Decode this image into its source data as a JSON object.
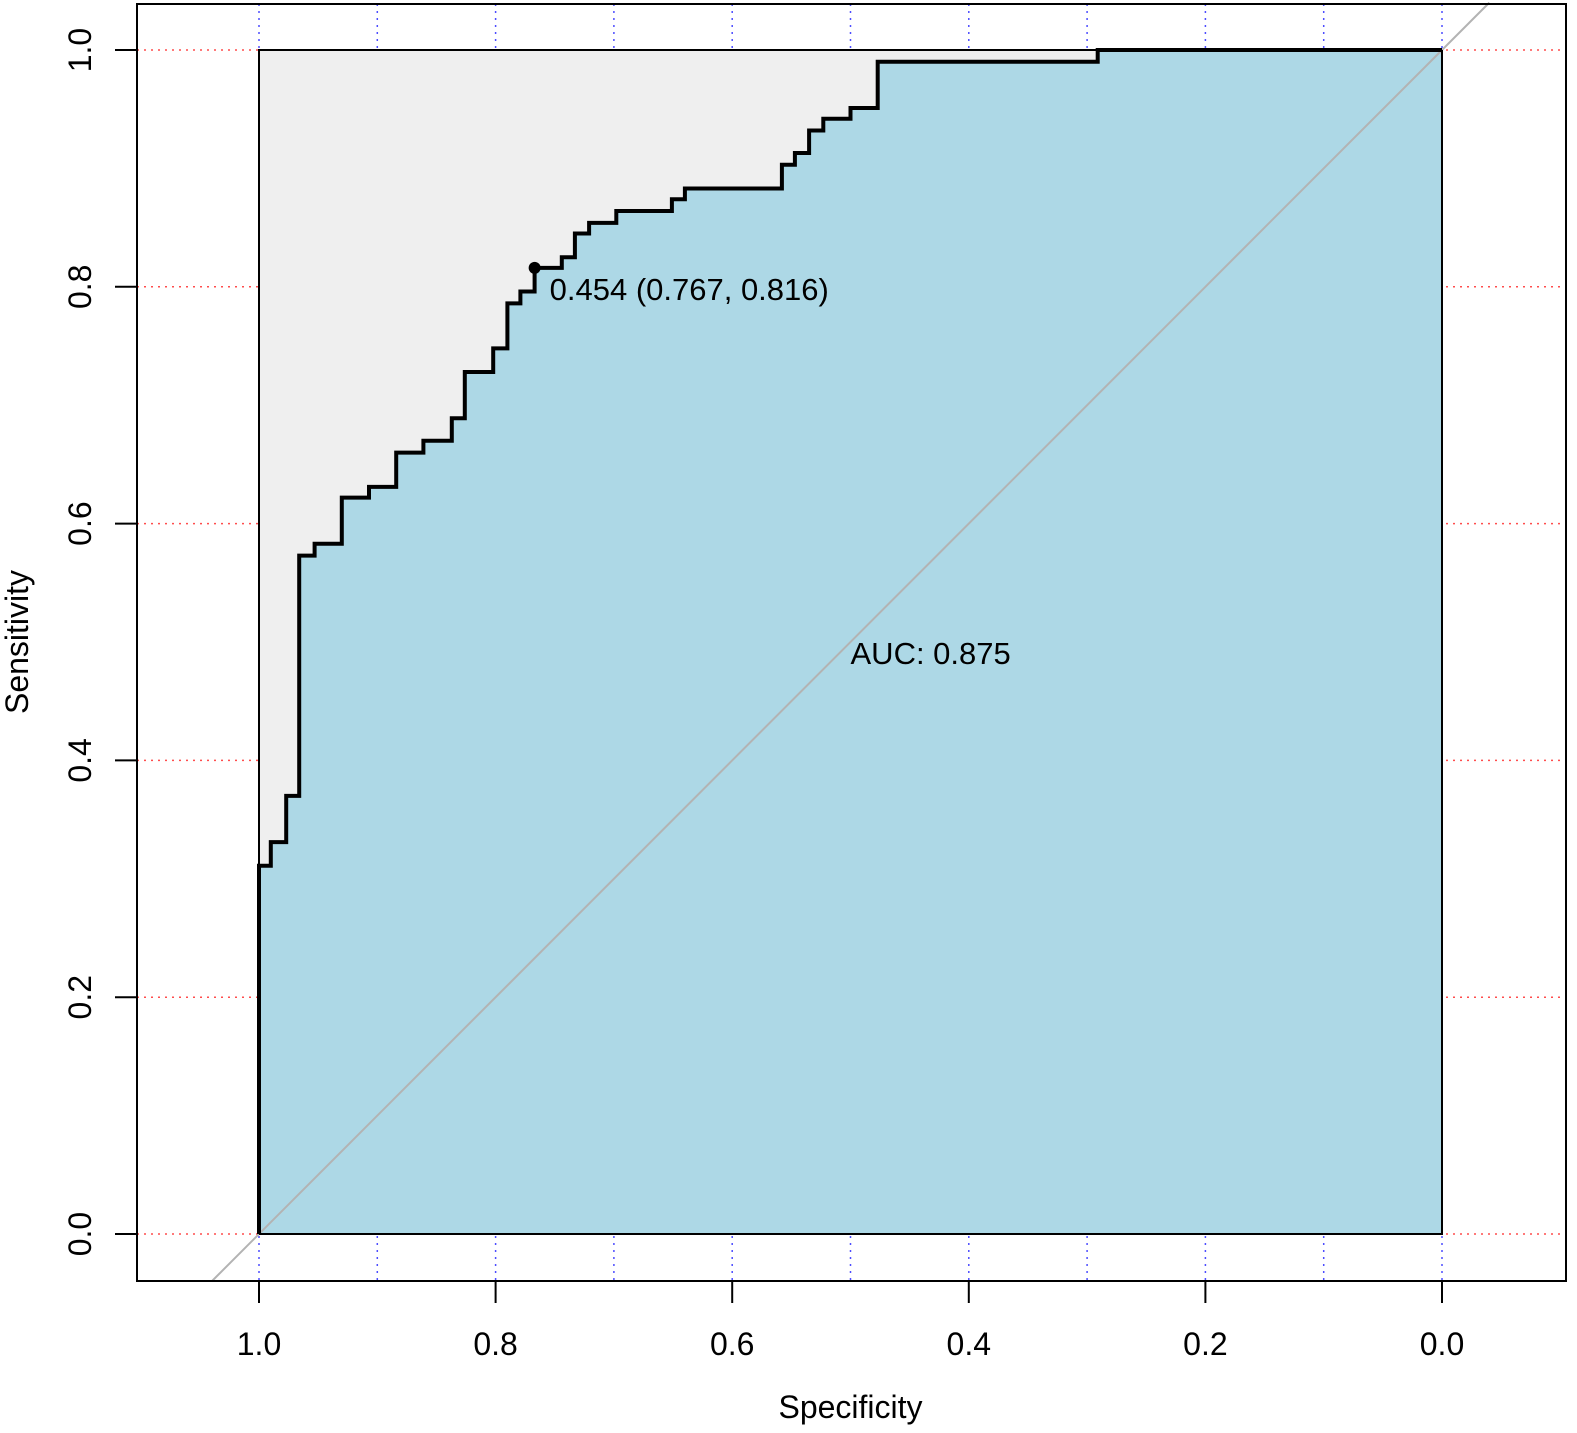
{
  "chart_data": {
    "type": "line",
    "subtype": "roc-curve",
    "title": "",
    "xlabel": "Specificity",
    "ylabel": "Sensitivity",
    "xlim": [
      1.0,
      0.0
    ],
    "ylim": [
      0.0,
      1.0
    ],
    "x_reversed": true,
    "x_ticks": [
      1.0,
      0.8,
      0.6,
      0.4,
      0.2,
      0.0
    ],
    "x_tick_labels": [
      "1.0",
      "0.8",
      "0.6",
      "0.4",
      "0.2",
      "0.0"
    ],
    "y_ticks": [
      0.0,
      0.2,
      0.4,
      0.6,
      0.8,
      1.0
    ],
    "y_tick_labels": [
      "0.0",
      "0.2",
      "0.4",
      "0.6",
      "0.8",
      "1.0"
    ],
    "grid": {
      "vertical": {
        "on": true,
        "style": "dotted",
        "color": "#4d4dff",
        "at": [
          1.0,
          0.9,
          0.8,
          0.7,
          0.6,
          0.5,
          0.4,
          0.3,
          0.2,
          0.1,
          0.0
        ]
      },
      "horizontal": {
        "on": true,
        "style": "dotted",
        "color": "#ff4d4d",
        "at": [
          0.0,
          0.2,
          0.4,
          0.6,
          0.8,
          1.0
        ]
      }
    },
    "colors": {
      "auc_fill": "#add8e6",
      "max_auc_fill": "#efefef",
      "curve": "#000000",
      "reference_line": "#b3b3b3"
    },
    "reference_line": {
      "from": [
        1.0,
        0.0
      ],
      "to": [
        0.0,
        1.0
      ]
    },
    "series": [
      {
        "specificity": [
          1.0,
          1.0,
          0.99,
          0.99,
          0.977,
          0.977,
          0.966,
          0.966,
          0.953,
          0.953,
          0.93,
          0.93,
          0.907,
          0.907,
          0.884,
          0.884,
          0.861,
          0.861,
          0.837,
          0.837,
          0.826,
          0.826,
          0.802,
          0.802,
          0.79,
          0.79,
          0.779,
          0.779,
          0.767,
          0.767,
          0.744,
          0.744,
          0.733,
          0.733,
          0.721,
          0.721,
          0.698,
          0.698,
          0.651,
          0.651,
          0.64,
          0.64,
          0.558,
          0.558,
          0.547,
          0.547,
          0.535,
          0.535,
          0.523,
          0.523,
          0.5,
          0.5,
          0.477,
          0.477,
          0.291,
          0.291,
          0.0,
          0.0
        ],
        "sensitivity": [
          0.0,
          0.311,
          0.311,
          0.331,
          0.331,
          0.37,
          0.37,
          0.573,
          0.573,
          0.583,
          0.583,
          0.622,
          0.622,
          0.631,
          0.631,
          0.66,
          0.66,
          0.67,
          0.67,
          0.689,
          0.689,
          0.728,
          0.728,
          0.748,
          0.748,
          0.786,
          0.786,
          0.796,
          0.796,
          0.816,
          0.816,
          0.825,
          0.825,
          0.845,
          0.845,
          0.854,
          0.854,
          0.864,
          0.864,
          0.874,
          0.874,
          0.883,
          0.883,
          0.903,
          0.903,
          0.913,
          0.913,
          0.932,
          0.932,
          0.942,
          0.942,
          0.951,
          0.951,
          0.99,
          0.99,
          1.0,
          1.0,
          0.0
        ]
      }
    ],
    "threshold_point": {
      "specificity": 0.767,
      "sensitivity": 0.816,
      "label": "0.454 (0.767, 0.816)"
    },
    "auc_label": {
      "text": "AUC: 0.875",
      "specificity": 0.5,
      "sensitivity": 0.5
    }
  }
}
